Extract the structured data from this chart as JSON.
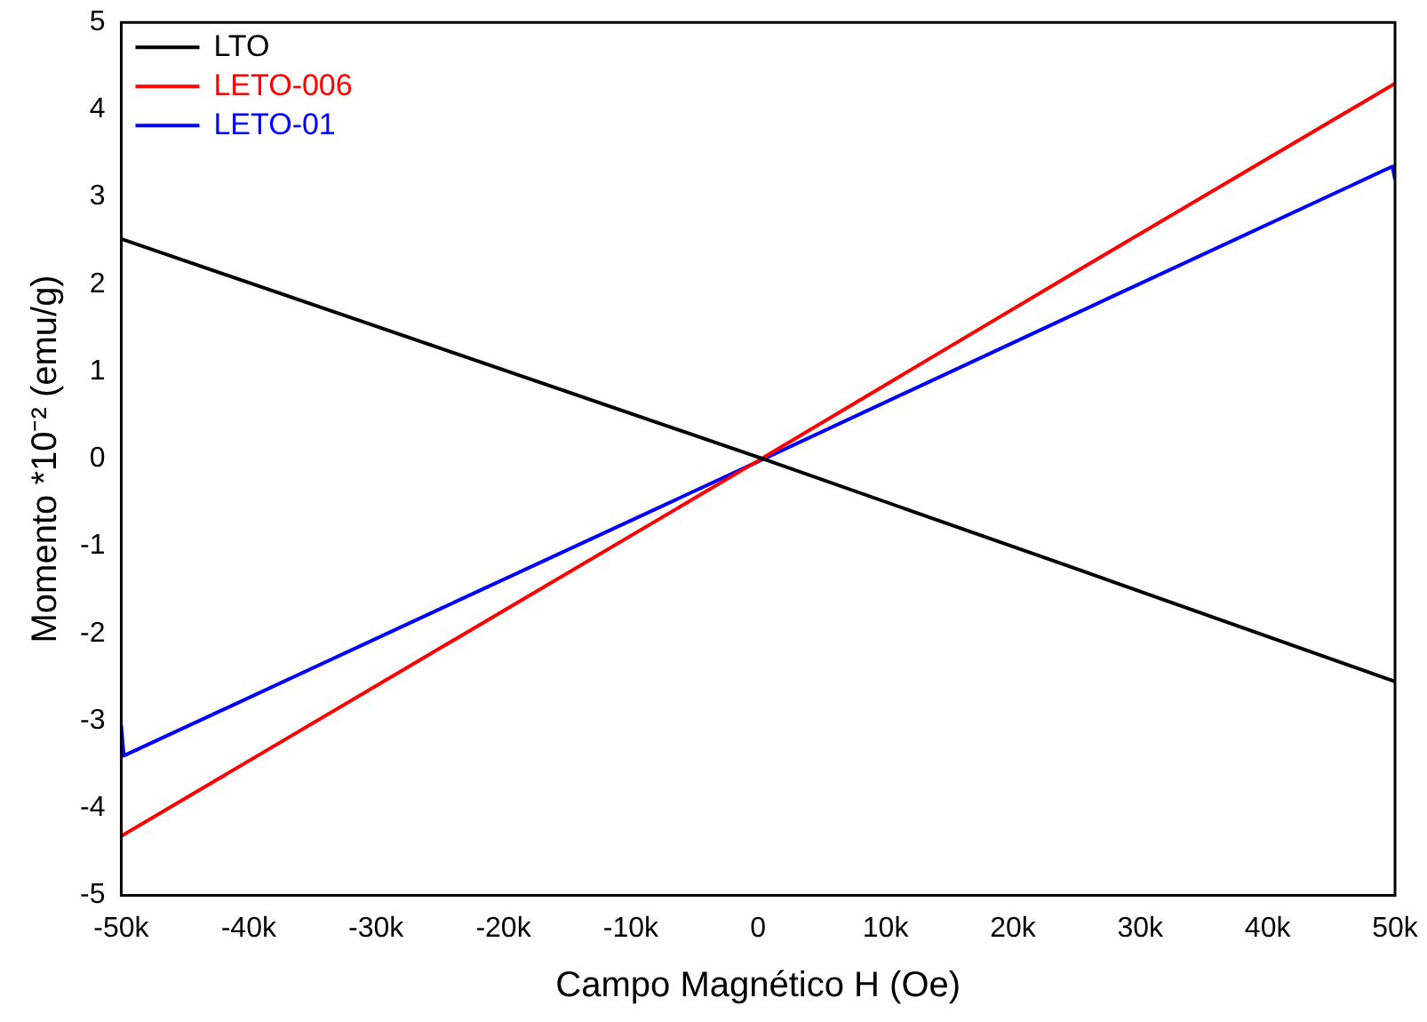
{
  "chart_data": {
    "type": "line",
    "xlabel": "Campo Magnético H (Oe)",
    "ylabel": "Momento *10⁻² (emu/g)",
    "xlim": [
      -50000,
      50000
    ],
    "ylim": [
      -5,
      5
    ],
    "xticks": [
      {
        "value": -50000,
        "label": "-50k"
      },
      {
        "value": -40000,
        "label": "-40k"
      },
      {
        "value": -30000,
        "label": "-30k"
      },
      {
        "value": -20000,
        "label": "-20k"
      },
      {
        "value": -10000,
        "label": "-10k"
      },
      0,
      {
        "value": 10000,
        "label": "10k"
      },
      {
        "value": 20000,
        "label": "20k"
      },
      {
        "value": 30000,
        "label": "30k"
      },
      {
        "value": 40000,
        "label": "40k"
      },
      {
        "value": 50000,
        "label": "50k"
      }
    ],
    "yticks": [
      -5,
      -4,
      -3,
      -2,
      -1,
      0,
      1,
      2,
      3,
      4,
      5
    ],
    "grid": false,
    "legend": "top left",
    "marker": "none",
    "line_style": "solid",
    "series": [
      {
        "name": "LTO",
        "color": "#000000",
        "x": [
          -50000,
          -25000,
          0,
          25000,
          50000
        ],
        "values": [
          2.52,
          1.27,
          0.02,
          -1.26,
          -2.55
        ]
      },
      {
        "name": "LETO-006",
        "color": "#ff0000",
        "x": [
          -50000,
          -25000,
          0,
          25000,
          50000
        ],
        "values": [
          -4.32,
          -2.17,
          -0.02,
          2.15,
          4.3
        ]
      },
      {
        "name": "LETO-01",
        "color": "#0000ff",
        "x": [
          -50000,
          -49800,
          -25000,
          0,
          25000,
          49800,
          50000
        ],
        "values": [
          -3.05,
          -3.4,
          -1.72,
          -0.03,
          1.67,
          3.35,
          3.2
        ]
      }
    ]
  }
}
